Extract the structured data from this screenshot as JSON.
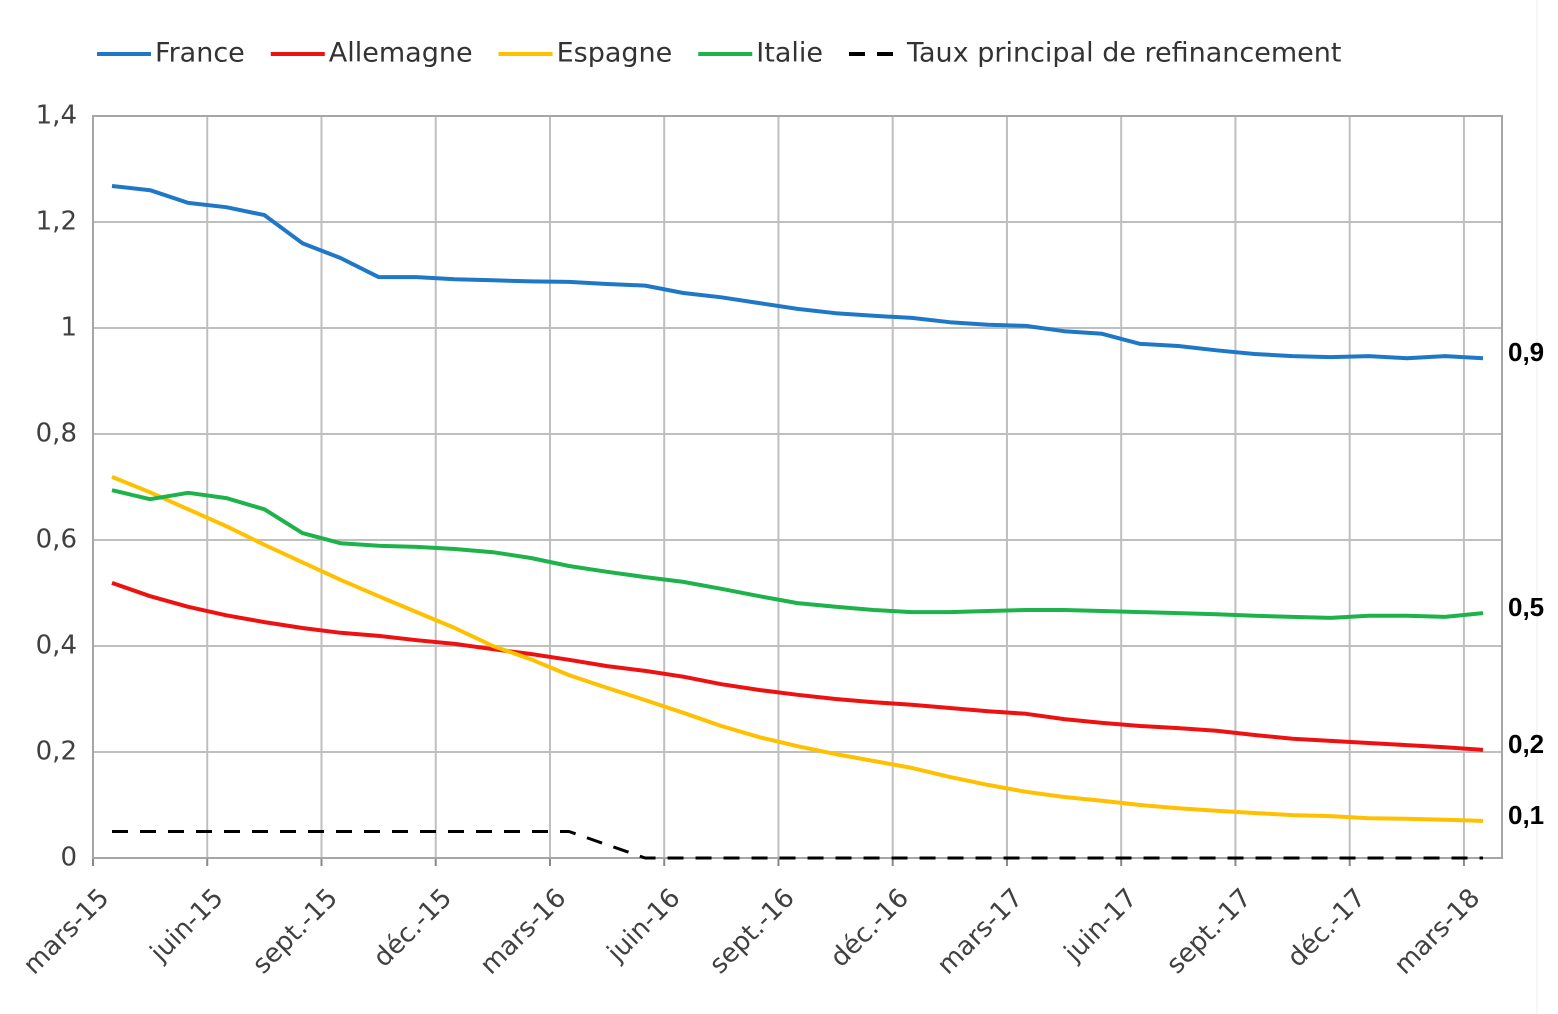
{
  "chart_data": {
    "type": "line",
    "categories": [
      "mars-15",
      null,
      null,
      "juin-15",
      null,
      null,
      "sept.-15",
      null,
      null,
      "déc.-15",
      null,
      null,
      "mars-16",
      null,
      null,
      "juin-16",
      null,
      null,
      "sept.-16",
      null,
      null,
      "déc.-16",
      null,
      null,
      "mars-17",
      null,
      null,
      "juin-17",
      null,
      null,
      "sept.-17",
      null,
      null,
      "déc.-17",
      null,
      null,
      "mars-18"
    ],
    "series": [
      {
        "name": "France",
        "color": "#1f77c8",
        "end_label": "0,9",
        "values": [
          1.268,
          1.26,
          1.236,
          1.228,
          1.213,
          1.16,
          1.132,
          1.096,
          1.096,
          1.092,
          1.09,
          1.088,
          1.087,
          1.083,
          1.08,
          1.066,
          1.058,
          1.047,
          1.036,
          1.028,
          1.023,
          1.019,
          1.011,
          1.006,
          1.004,
          0.994,
          0.989,
          0.97,
          0.966,
          0.958,
          0.951,
          0.947,
          0.945,
          0.947,
          0.943,
          0.947,
          0.943
        ]
      },
      {
        "name": "Allemagne",
        "color": "#ee1111",
        "end_label": "0,2",
        "values": [
          0.519,
          0.494,
          0.474,
          0.458,
          0.445,
          0.434,
          0.425,
          0.419,
          0.411,
          0.404,
          0.394,
          0.385,
          0.374,
          0.362,
          0.353,
          0.342,
          0.328,
          0.317,
          0.308,
          0.3,
          0.294,
          0.289,
          0.283,
          0.277,
          0.272,
          0.262,
          0.255,
          0.249,
          0.245,
          0.24,
          0.232,
          0.225,
          0.221,
          0.217,
          0.213,
          0.209,
          0.204
        ]
      },
      {
        "name": "Espagne",
        "color": "#ffc000",
        "end_label": "0,1",
        "values": [
          0.719,
          0.69,
          0.658,
          0.626,
          0.591,
          0.558,
          0.525,
          0.494,
          0.464,
          0.434,
          0.4,
          0.375,
          0.345,
          0.321,
          0.298,
          0.274,
          0.249,
          0.228,
          0.211,
          0.196,
          0.183,
          0.17,
          0.153,
          0.138,
          0.125,
          0.115,
          0.108,
          0.1,
          0.094,
          0.089,
          0.085,
          0.081,
          0.079,
          0.075,
          0.074,
          0.072,
          0.07
        ]
      },
      {
        "name": "Italie",
        "color": "#1db34a",
        "end_label": "0,5",
        "values": [
          0.694,
          0.677,
          0.689,
          0.679,
          0.658,
          0.613,
          0.594,
          0.589,
          0.587,
          0.583,
          0.577,
          0.566,
          0.551,
          0.54,
          0.53,
          0.521,
          0.508,
          0.494,
          0.481,
          0.474,
          0.468,
          0.464,
          0.464,
          0.466,
          0.468,
          0.468,
          0.466,
          0.464,
          0.462,
          0.46,
          0.457,
          0.455,
          0.453,
          0.457,
          0.457,
          0.455,
          0.462
        ]
      },
      {
        "name": "Taux principal de refinancement",
        "color": "#000000",
        "dashed": true,
        "values": [
          0.05,
          0.05,
          0.05,
          0.05,
          0.05,
          0.05,
          0.05,
          0.05,
          0.05,
          0.05,
          0.05,
          0.05,
          0.05,
          0.025,
          0,
          0,
          0,
          0,
          0,
          0,
          0,
          0,
          0,
          0,
          0,
          0,
          0,
          0,
          0,
          0,
          0,
          0,
          0,
          0,
          0,
          0,
          0
        ]
      }
    ],
    "ylim": [
      0,
      1.4
    ],
    "yticks": [
      0,
      {
        "value": 0.2,
        "label": "0,2"
      },
      {
        "value": 0.4,
        "label": "0,4"
      },
      {
        "value": 0.6,
        "label": "0,6"
      },
      {
        "value": 0.8,
        "label": "0,8"
      },
      1,
      {
        "value": 1.2,
        "label": "1,2"
      },
      {
        "value": 1.4,
        "label": "1,4"
      }
    ],
    "grid": true,
    "legend": "top"
  }
}
